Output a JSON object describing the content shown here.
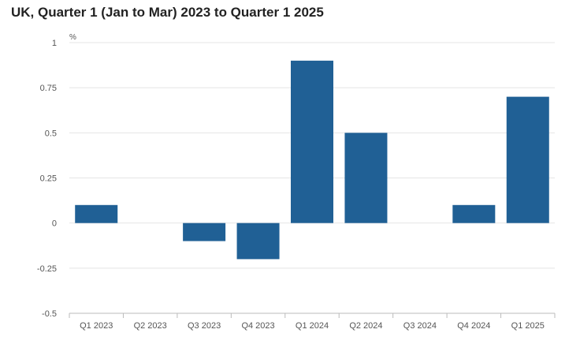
{
  "chart_data": {
    "type": "bar",
    "title": "UK, Quarter 1 (Jan to Mar) 2023 to Quarter 1 2025",
    "y_unit": "%",
    "categories": [
      "Q1 2023",
      "Q2 2023",
      "Q3 2023",
      "Q4 2023",
      "Q1 2024",
      "Q2 2024",
      "Q3 2024",
      "Q4 2024",
      "Q1 2025"
    ],
    "values": [
      0.1,
      0,
      -0.1,
      -0.2,
      0.9,
      0.5,
      0,
      0.1,
      0.7
    ],
    "ylim": [
      -0.5,
      1
    ],
    "yticks": [
      "1",
      "0.75",
      "0.5",
      "0.25",
      "0",
      "-0.25",
      "-0.5"
    ],
    "grid": true,
    "colors": {
      "bar": "#206095",
      "grid": "#e4e4e4",
      "axis": "#bbbbbb"
    }
  }
}
